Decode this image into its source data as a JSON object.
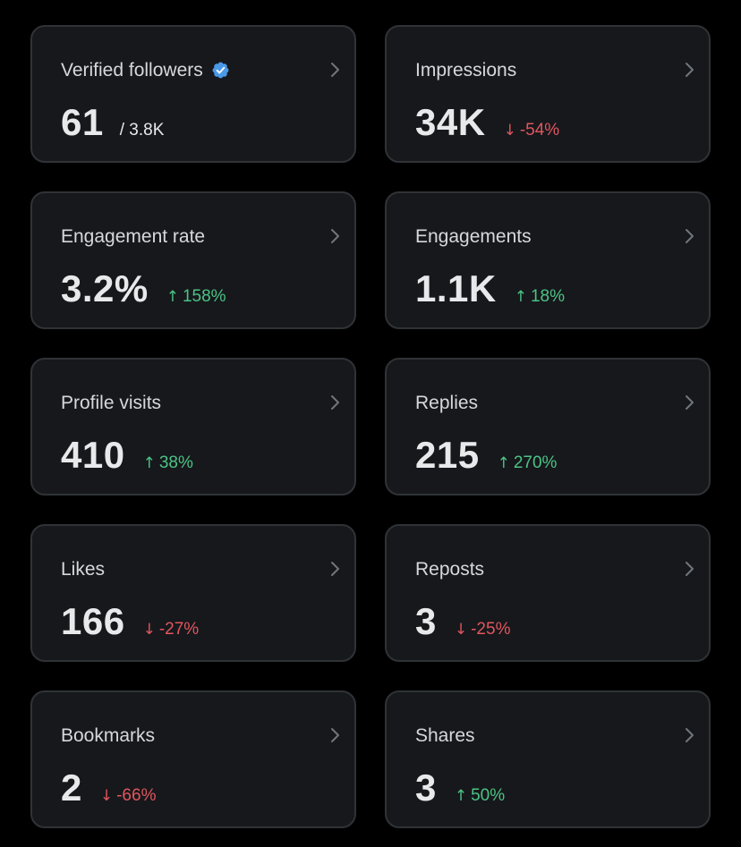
{
  "colors": {
    "background": "#000000",
    "card": "#16181c",
    "border": "#2f3336",
    "up": "#4cc384",
    "down": "#e0565d",
    "verified": "#4a99e9"
  },
  "cards": [
    {
      "label": "Verified followers",
      "value": "61",
      "total": "/ 3.8K",
      "badge": "verified-badge-icon"
    },
    {
      "label": "Impressions",
      "value": "34K",
      "arrow": "↓",
      "change": "-54%",
      "trend": "down"
    },
    {
      "label": "Engagement rate",
      "value": "3.2%",
      "arrow": "↑",
      "change": "158%",
      "trend": "up"
    },
    {
      "label": "Engagements",
      "value": "1.1K",
      "arrow": "↑",
      "change": "18%",
      "trend": "up"
    },
    {
      "label": "Profile visits",
      "value": "410",
      "arrow": "↑",
      "change": "38%",
      "trend": "up"
    },
    {
      "label": "Replies",
      "value": "215",
      "arrow": "↑",
      "change": "270%",
      "trend": "up"
    },
    {
      "label": "Likes",
      "value": "166",
      "arrow": "↓",
      "change": "-27%",
      "trend": "down"
    },
    {
      "label": "Reposts",
      "value": "3",
      "arrow": "↓",
      "change": "-25%",
      "trend": "down"
    },
    {
      "label": "Bookmarks",
      "value": "2",
      "arrow": "↓",
      "change": "-66%",
      "trend": "down"
    },
    {
      "label": "Shares",
      "value": "3",
      "arrow": "↑",
      "change": "50%",
      "trend": "up"
    }
  ]
}
